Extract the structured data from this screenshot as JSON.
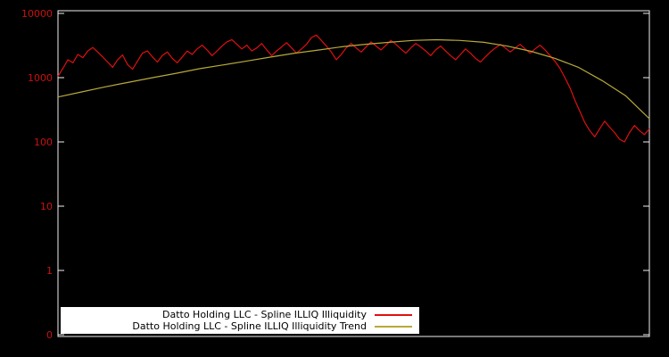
{
  "colors": {
    "background": "#000000",
    "frame": "#f0f0f0",
    "axis_label": "#cc1111",
    "legend_background": "#ffffff",
    "legend_text": "#000000"
  },
  "chart_data": {
    "type": "line",
    "title": "",
    "xlabel": "",
    "ylabel": "",
    "x_axis": {
      "tick_labels": []
    },
    "y_axis": {
      "scale": "log",
      "tick_labels": [
        "10000",
        "1000",
        "100",
        "10",
        "1",
        "0"
      ],
      "top_value": 10000,
      "decades_shown": 5
    },
    "legend": {
      "position": "bottom-center",
      "background": "#ffffff"
    },
    "series": [
      {
        "name": "Datto Holding LLC - Spline ILLIQ Illiquidity",
        "color": "#e01010",
        "values": [
          1050,
          1400,
          1900,
          1700,
          2300,
          2050,
          2600,
          2950,
          2500,
          2100,
          1750,
          1450,
          1900,
          2250,
          1600,
          1350,
          1800,
          2400,
          2600,
          2100,
          1750,
          2200,
          2500,
          2000,
          1700,
          2100,
          2600,
          2300,
          2800,
          3200,
          2700,
          2200,
          2600,
          3100,
          3600,
          3900,
          3300,
          2800,
          3200,
          2600,
          2900,
          3400,
          2700,
          2200,
          2600,
          3000,
          3500,
          2900,
          2400,
          2800,
          3300,
          4200,
          4600,
          3800,
          3100,
          2500,
          1900,
          2300,
          2900,
          3400,
          2900,
          2500,
          3000,
          3600,
          3100,
          2700,
          3200,
          3800,
          3300,
          2800,
          2400,
          2900,
          3400,
          3000,
          2600,
          2200,
          2700,
          3100,
          2600,
          2200,
          1900,
          2300,
          2800,
          2400,
          2000,
          1750,
          2100,
          2500,
          2900,
          3300,
          2900,
          2500,
          2900,
          3300,
          2800,
          2400,
          2800,
          3200,
          2700,
          2200,
          1800,
          1400,
          1000,
          700,
          450,
          300,
          200,
          150,
          120,
          160,
          210,
          170,
          140,
          110,
          100,
          140,
          180,
          150,
          130,
          160
        ]
      },
      {
        "name": "Datto Holding LLC - Spline ILLIQ Illiquidity Trend",
        "color": "#b8a93a",
        "values": [
          500,
          600,
          720,
          850,
          1000,
          1170,
          1380,
          1580,
          1820,
          2090,
          2400,
          2690,
          3020,
          3310,
          3550,
          3800,
          3890,
          3800,
          3550,
          3090,
          2570,
          2000,
          1450,
          900,
          520,
          230
        ]
      }
    ]
  }
}
